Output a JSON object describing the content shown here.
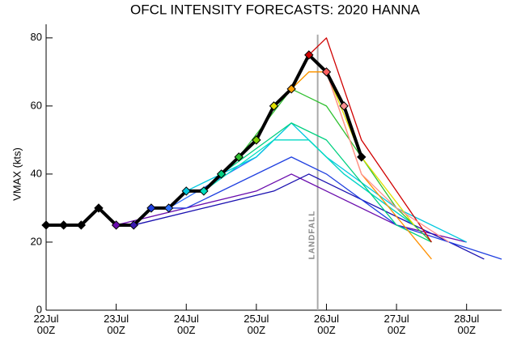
{
  "chart_data": {
    "type": "line",
    "title": "OFCL INTENSITY FORECASTS: 2020 HANNA",
    "y_label": "VMAX (kts)",
    "ylim": [
      0,
      84
    ],
    "yticks": [
      0,
      20,
      40,
      60,
      80
    ],
    "xlim": [
      "22Jul 00Z",
      "28Jul 12Z"
    ],
    "xticks": [
      "22Jul 00Z",
      "23Jul 00Z",
      "24Jul 00Z",
      "25Jul 00Z",
      "26Jul 00Z",
      "27Jul 00Z",
      "28Jul 00Z"
    ],
    "landfall": {
      "label": "LANDFALL",
      "x": "25Jul 21Z",
      "color": "#aaaaaa"
    },
    "best_track": {
      "color": "#000000",
      "x": [
        "22Jul 00Z",
        "22Jul 06Z",
        "22Jul 12Z",
        "22Jul 18Z",
        "23Jul 00Z",
        "23Jul 06Z",
        "23Jul 12Z",
        "23Jul 18Z",
        "24Jul 00Z",
        "24Jul 06Z",
        "24Jul 12Z",
        "24Jul 18Z",
        "25Jul 00Z",
        "25Jul 06Z",
        "25Jul 12Z",
        "25Jul 18Z",
        "26Jul 00Z",
        "26Jul 06Z",
        "26Jul 12Z"
      ],
      "values": [
        25,
        25,
        25,
        30,
        25,
        25,
        30,
        30,
        35,
        35,
        40,
        45,
        50,
        60,
        65,
        75,
        70,
        60,
        45
      ],
      "marker_colors": [
        "#000000",
        "#000000",
        "#000000",
        "#000000",
        "#6a0dad",
        "#3a1ab0",
        "#2040e0",
        "#3070ff",
        "#00c8e0",
        "#00e0c0",
        "#00d080",
        "#30c030",
        "#80d000",
        "#e0e000",
        "#ffa000",
        "#d00000",
        "#ff6060",
        "#ff9090",
        "#000000"
      ]
    },
    "series": [
      {
        "color": "#6a0dad",
        "x": [
          "23Jul 00Z",
          "24Jul 00Z",
          "25Jul 00Z",
          "25Jul 12Z",
          "26Jul 00Z",
          "27Jul 00Z",
          "28Jul 00Z"
        ],
        "values": [
          25,
          30,
          35,
          40,
          35,
          25,
          20
        ]
      },
      {
        "color": "#1a10b0",
        "x": [
          "23Jul 06Z",
          "24Jul 06Z",
          "25Jul 06Z",
          "25Jul 18Z",
          "26Jul 06Z",
          "27Jul 06Z",
          "28Jul 06Z"
        ],
        "values": [
          25,
          30,
          35,
          40,
          35,
          25,
          15
        ]
      },
      {
        "color": "#2040e0",
        "x": [
          "23Jul 12Z",
          "24Jul 00Z",
          "25Jul 12Z",
          "26Jul 00Z",
          "27Jul 00Z",
          "28Jul 12Z"
        ],
        "values": [
          30,
          30,
          45,
          40,
          25,
          15
        ]
      },
      {
        "color": "#3070ff",
        "x": [
          "23Jul 18Z",
          "25Jul 00Z",
          "25Jul 06Z",
          "25Jul 18Z",
          "26Jul 06Z",
          "27Jul 06Z"
        ],
        "values": [
          30,
          45,
          50,
          50,
          40,
          25
        ]
      },
      {
        "color": "#00c8e0",
        "x": [
          "24Jul 00Z",
          "25Jul 00Z",
          "25Jul 12Z",
          "26Jul 00Z",
          "27Jul 00Z",
          "28Jul 00Z"
        ],
        "values": [
          35,
          45,
          55,
          45,
          30,
          20
        ]
      },
      {
        "color": "#00e0c0",
        "x": [
          "24Jul 06Z",
          "25Jul 06Z",
          "25Jul 18Z",
          "26Jul 06Z",
          "27Jul 06Z"
        ],
        "values": [
          35,
          50,
          50,
          40,
          25
        ]
      },
      {
        "color": "#00d080",
        "x": [
          "24Jul 12Z",
          "25Jul 12Z",
          "26Jul 00Z",
          "27Jul 00Z",
          "27Jul 12Z"
        ],
        "values": [
          40,
          55,
          50,
          25,
          20
        ]
      },
      {
        "color": "#30c030",
        "x": [
          "24Jul 18Z",
          "25Jul 12Z",
          "26Jul 00Z",
          "27Jul 00Z",
          "27Jul 12Z"
        ],
        "values": [
          45,
          65,
          60,
          30,
          20
        ]
      },
      {
        "color": "#e0e000",
        "x": [
          "25Jul 06Z",
          "25Jul 18Z",
          "26Jul 00Z",
          "26Jul 12Z",
          "27Jul 06Z"
        ],
        "values": [
          60,
          70,
          70,
          45,
          25
        ]
      },
      {
        "color": "#ff9000",
        "x": [
          "25Jul 12Z",
          "25Jul 18Z",
          "26Jul 00Z",
          "26Jul 12Z",
          "27Jul 12Z"
        ],
        "values": [
          65,
          70,
          70,
          40,
          15
        ]
      },
      {
        "color": "#d00000",
        "x": [
          "25Jul 18Z",
          "26Jul 00Z",
          "26Jul 12Z",
          "27Jul 12Z"
        ],
        "values": [
          75,
          80,
          50,
          20
        ]
      },
      {
        "color": "#ff9090",
        "x": [
          "26Jul 00Z",
          "26Jul 12Z",
          "27Jul 00Z",
          "27Jul 18Z"
        ],
        "values": [
          70,
          40,
          30,
          20
        ]
      }
    ]
  }
}
